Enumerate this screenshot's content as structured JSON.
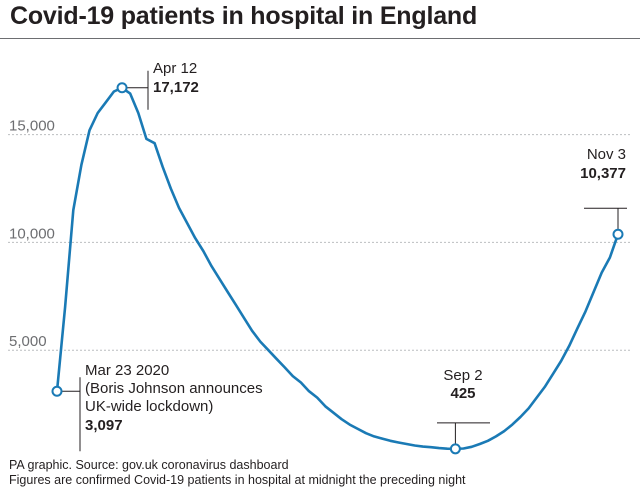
{
  "title": "Covid-19 patients in hospital in England",
  "footer": {
    "source": "PA graphic. Source: gov.uk coronavirus dashboard",
    "note": "Figures are confirmed Covid-19 patients in hospital at midnight the preceding night"
  },
  "colors": {
    "line": "#1a7ab5",
    "grid": "#bcbec0",
    "text": "#231f20",
    "tick": "#6d6e71"
  },
  "chart_data": {
    "type": "line",
    "title": "Covid-19 patients in hospital in England",
    "xlabel": "",
    "ylabel": "",
    "x_start": "2020-03-23",
    "x_end": "2020-11-03",
    "ylim": [
      0,
      18500
    ],
    "yticks": [
      5000,
      10000,
      15000
    ],
    "ytick_labels": [
      "5,000",
      "10,000",
      "15,000"
    ],
    "grid": true,
    "series": [
      {
        "name": "Patients in hospital",
        "values": [
          3097,
          7000,
          11500,
          13600,
          15200,
          16000,
          16500,
          17000,
          17172,
          16900,
          16000,
          14800,
          14600,
          13500,
          12500,
          11600,
          10900,
          10200,
          9600,
          8900,
          8300,
          7700,
          7100,
          6500,
          5900,
          5400,
          5000,
          4600,
          4200,
          3800,
          3500,
          3100,
          2800,
          2400,
          2100,
          1800,
          1550,
          1350,
          1150,
          1000,
          900,
          800,
          720,
          650,
          580,
          530,
          500,
          460,
          430,
          425,
          440,
          520,
          650,
          800,
          1000,
          1250,
          1550,
          1900,
          2300,
          2800,
          3300,
          3900,
          4500,
          5200,
          6000,
          6800,
          7700,
          8600,
          9300,
          10377
        ]
      }
    ],
    "annotations": [
      {
        "id": "start",
        "date": "Mar 23 2020",
        "note_line1": "(Boris Johnson announces",
        "note_line2": "UK-wide lockdown)",
        "value": "3,097"
      },
      {
        "id": "peak",
        "date": "Apr 12",
        "value": "17,172"
      },
      {
        "id": "low",
        "date": "Sep 2",
        "value": "425"
      },
      {
        "id": "end",
        "date": "Nov 3",
        "value": "10,377"
      }
    ]
  }
}
